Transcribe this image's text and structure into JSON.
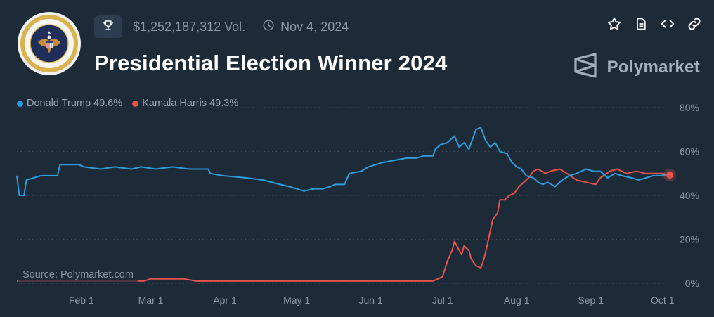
{
  "header": {
    "volume": "$1,252,187,312 Vol.",
    "date": "Nov 4, 2024",
    "title": "Presidential Election Winner 2024",
    "brand": "Polymarket",
    "icons": [
      "trophy-icon",
      "clock-icon",
      "star-icon",
      "document-icon",
      "code-icon",
      "link-icon"
    ]
  },
  "legend": [
    {
      "label": "Donald Trump 49.6%",
      "color": "#2d9cdb"
    },
    {
      "label": "Kamala Harris 49.3%",
      "color": "#e5534b"
    }
  ],
  "source": "Source: Polymarket.com",
  "chart_data": {
    "type": "line",
    "ylim": [
      0,
      80
    ],
    "xlim": [
      "2024-01-05",
      "2024-10-04"
    ],
    "y_ticks": [
      {
        "value": 80,
        "label": "80%"
      },
      {
        "value": 60,
        "label": "60%"
      },
      {
        "value": 40,
        "label": "40%"
      },
      {
        "value": 20,
        "label": "20%"
      },
      {
        "value": 0,
        "label": "0%"
      }
    ],
    "x_ticks": [
      {
        "date": "2024-02-01",
        "label": "Feb 1"
      },
      {
        "date": "2024-03-01",
        "label": "Mar 1"
      },
      {
        "date": "2024-04-01",
        "label": "Apr 1"
      },
      {
        "date": "2024-05-01",
        "label": "May 1"
      },
      {
        "date": "2024-06-01",
        "label": "Jun 1"
      },
      {
        "date": "2024-07-01",
        "label": "Jul 1"
      },
      {
        "date": "2024-08-01",
        "label": "Aug 1"
      },
      {
        "date": "2024-09-01",
        "label": "Sep 1"
      },
      {
        "date": "2024-10-01",
        "label": "Oct 1"
      }
    ],
    "grid": true,
    "series": [
      {
        "name": "Donald Trump",
        "color": "#2d9cdb",
        "points": [
          [
            "2024-01-05",
            49
          ],
          [
            "2024-01-06",
            40
          ],
          [
            "2024-01-08",
            40
          ],
          [
            "2024-01-09",
            47
          ],
          [
            "2024-01-12",
            48
          ],
          [
            "2024-01-15",
            49
          ],
          [
            "2024-01-22",
            49
          ],
          [
            "2024-01-23",
            54
          ],
          [
            "2024-01-31",
            54
          ],
          [
            "2024-02-02",
            53
          ],
          [
            "2024-02-09",
            52
          ],
          [
            "2024-02-15",
            53
          ],
          [
            "2024-02-22",
            52
          ],
          [
            "2024-02-26",
            53
          ],
          [
            "2024-03-03",
            52
          ],
          [
            "2024-03-10",
            53
          ],
          [
            "2024-03-17",
            52
          ],
          [
            "2024-03-25",
            52
          ],
          [
            "2024-03-26",
            50
          ],
          [
            "2024-03-31",
            49
          ],
          [
            "2024-04-10",
            48
          ],
          [
            "2024-04-17",
            47
          ],
          [
            "2024-04-24",
            45
          ],
          [
            "2024-04-28",
            44
          ],
          [
            "2024-05-01",
            43
          ],
          [
            "2024-05-04",
            42
          ],
          [
            "2024-05-08",
            43
          ],
          [
            "2024-05-12",
            43
          ],
          [
            "2024-05-15",
            44
          ],
          [
            "2024-05-17",
            45
          ],
          [
            "2024-05-21",
            45
          ],
          [
            "2024-05-23",
            50
          ],
          [
            "2024-05-28",
            51
          ],
          [
            "2024-05-31",
            53
          ],
          [
            "2024-06-03",
            54
          ],
          [
            "2024-06-06",
            55
          ],
          [
            "2024-06-11",
            56
          ],
          [
            "2024-06-16",
            57
          ],
          [
            "2024-06-20",
            57
          ],
          [
            "2024-06-23",
            58
          ],
          [
            "2024-06-27",
            58
          ],
          [
            "2024-06-28",
            61
          ],
          [
            "2024-06-30",
            63
          ],
          [
            "2024-07-03",
            64
          ],
          [
            "2024-07-06",
            67
          ],
          [
            "2024-07-08",
            62
          ],
          [
            "2024-07-10",
            64
          ],
          [
            "2024-07-12",
            61
          ],
          [
            "2024-07-13",
            64
          ],
          [
            "2024-07-15",
            70
          ],
          [
            "2024-07-17",
            71
          ],
          [
            "2024-07-19",
            65
          ],
          [
            "2024-07-21",
            62
          ],
          [
            "2024-07-23",
            64
          ],
          [
            "2024-07-25",
            60
          ],
          [
            "2024-07-28",
            59
          ],
          [
            "2024-07-30",
            55
          ],
          [
            "2024-08-01",
            53
          ],
          [
            "2024-08-03",
            52
          ],
          [
            "2024-08-05",
            49
          ],
          [
            "2024-08-08",
            48
          ],
          [
            "2024-08-10",
            46
          ],
          [
            "2024-08-12",
            45
          ],
          [
            "2024-08-14",
            46
          ],
          [
            "2024-08-17",
            44
          ],
          [
            "2024-08-20",
            47
          ],
          [
            "2024-08-23",
            49
          ],
          [
            "2024-08-26",
            50
          ],
          [
            "2024-08-30",
            52
          ],
          [
            "2024-09-02",
            51
          ],
          [
            "2024-09-05",
            51
          ],
          [
            "2024-09-08",
            48
          ],
          [
            "2024-09-11",
            50
          ],
          [
            "2024-09-14",
            49
          ],
          [
            "2024-09-18",
            48
          ],
          [
            "2024-09-21",
            47
          ],
          [
            "2024-09-24",
            48
          ],
          [
            "2024-09-27",
            49
          ],
          [
            "2024-09-30",
            49
          ],
          [
            "2024-10-04",
            49.6
          ]
        ]
      },
      {
        "name": "Kamala Harris",
        "color": "#e5534b",
        "points": [
          [
            "2024-01-05",
            1
          ],
          [
            "2024-02-27",
            1
          ],
          [
            "2024-03-01",
            2
          ],
          [
            "2024-03-15",
            2
          ],
          [
            "2024-03-20",
            1
          ],
          [
            "2024-06-27",
            1
          ],
          [
            "2024-06-29",
            2
          ],
          [
            "2024-07-01",
            3
          ],
          [
            "2024-07-03",
            10
          ],
          [
            "2024-07-05",
            15
          ],
          [
            "2024-07-06",
            19
          ],
          [
            "2024-07-07",
            17
          ],
          [
            "2024-07-09",
            13
          ],
          [
            "2024-07-10",
            17
          ],
          [
            "2024-07-12",
            15
          ],
          [
            "2024-07-13",
            11
          ],
          [
            "2024-07-15",
            8
          ],
          [
            "2024-07-17",
            7
          ],
          [
            "2024-07-18",
            10
          ],
          [
            "2024-07-19",
            14
          ],
          [
            "2024-07-21",
            24
          ],
          [
            "2024-07-22",
            29
          ],
          [
            "2024-07-24",
            32
          ],
          [
            "2024-07-25",
            38
          ],
          [
            "2024-07-27",
            38
          ],
          [
            "2024-07-29",
            40
          ],
          [
            "2024-07-31",
            41
          ],
          [
            "2024-08-02",
            44
          ],
          [
            "2024-08-04",
            46
          ],
          [
            "2024-08-06",
            48
          ],
          [
            "2024-08-08",
            51
          ],
          [
            "2024-08-10",
            52
          ],
          [
            "2024-08-13",
            50
          ],
          [
            "2024-08-15",
            51
          ],
          [
            "2024-08-19",
            52
          ],
          [
            "2024-08-22",
            50
          ],
          [
            "2024-08-26",
            47
          ],
          [
            "2024-08-30",
            46
          ],
          [
            "2024-09-03",
            45
          ],
          [
            "2024-09-05",
            48
          ],
          [
            "2024-09-09",
            51
          ],
          [
            "2024-09-12",
            52
          ],
          [
            "2024-09-16",
            50
          ],
          [
            "2024-09-20",
            51
          ],
          [
            "2024-09-24",
            50
          ],
          [
            "2024-09-28",
            50
          ],
          [
            "2024-10-01",
            50
          ],
          [
            "2024-10-04",
            49.3
          ]
        ]
      }
    ]
  }
}
